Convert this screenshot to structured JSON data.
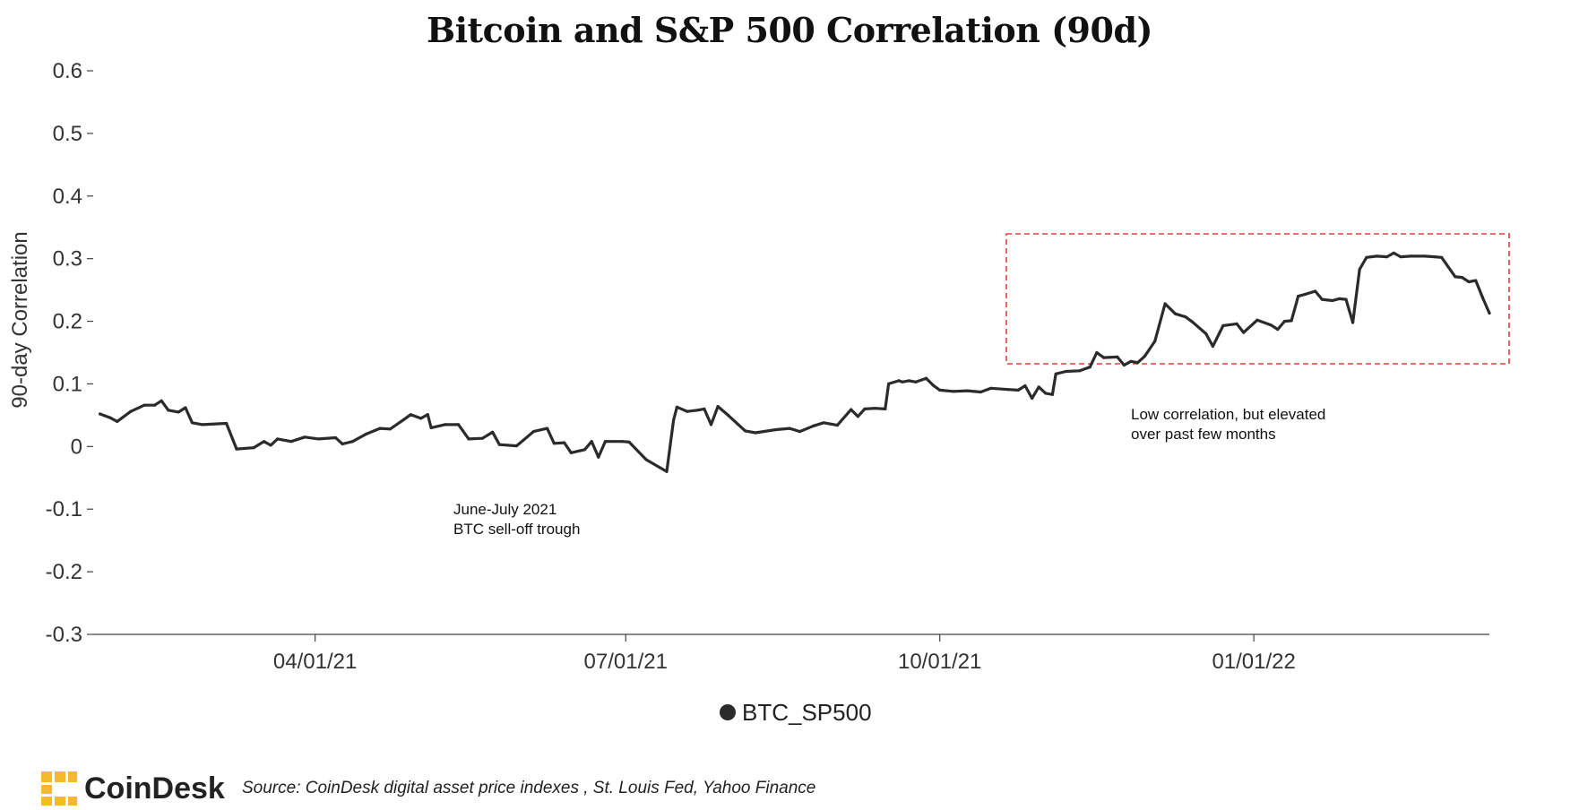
{
  "chart_data": {
    "type": "line",
    "title": "Bitcoin and S&P 500 Correlation (90d)",
    "xlabel": "",
    "ylabel": "90-day Correlation",
    "ylim": [
      -0.3,
      0.6
    ],
    "yticks": [
      -0.3,
      -0.2,
      -0.1,
      0,
      0.1,
      0.2,
      0.3,
      0.4,
      0.5,
      0.6
    ],
    "ytick_labels": [
      "-0.3",
      "-0.2",
      "-0.1",
      "0",
      "0.1",
      "0.2",
      "0.3",
      "0.4",
      "0.5",
      "0.6"
    ],
    "xlim": [
      "2021-01-26",
      "2022-03-11"
    ],
    "xticks": [
      "2021-04-01",
      "2021-07-01",
      "2021-10-01",
      "2022-01-01"
    ],
    "xtick_labels": [
      "04/01/21",
      "07/01/21",
      "10/01/21",
      "01/01/22"
    ],
    "grid": false,
    "legend_position": "bottom-center",
    "colors": {
      "line": "#2b2b2b",
      "highlight_box": "#e0403a",
      "brand_gold": "#f5b92c"
    },
    "series": [
      {
        "name": "BTC_SP500",
        "points": [
          [
            "2021-01-28",
            0.052
          ],
          [
            "2021-01-31",
            0.046
          ],
          [
            "2021-02-02",
            0.04
          ],
          [
            "2021-02-06",
            0.056
          ],
          [
            "2021-02-10",
            0.066
          ],
          [
            "2021-02-13",
            0.066
          ],
          [
            "2021-02-15",
            0.073
          ],
          [
            "2021-02-17",
            0.058
          ],
          [
            "2021-02-20",
            0.055
          ],
          [
            "2021-02-22",
            0.062
          ],
          [
            "2021-02-24",
            0.038
          ],
          [
            "2021-02-27",
            0.035
          ],
          [
            "2021-03-06",
            0.037
          ],
          [
            "2021-03-09",
            -0.004
          ],
          [
            "2021-03-14",
            -0.002
          ],
          [
            "2021-03-17",
            0.008
          ],
          [
            "2021-03-19",
            0.002
          ],
          [
            "2021-03-21",
            0.012
          ],
          [
            "2021-03-25",
            0.008
          ],
          [
            "2021-03-29",
            0.015
          ],
          [
            "2021-04-02",
            0.012
          ],
          [
            "2021-04-07",
            0.014
          ],
          [
            "2021-04-09",
            0.004
          ],
          [
            "2021-04-12",
            0.008
          ],
          [
            "2021-04-16",
            0.02
          ],
          [
            "2021-04-20",
            0.029
          ],
          [
            "2021-04-23",
            0.028
          ],
          [
            "2021-04-27",
            0.043
          ],
          [
            "2021-04-29",
            0.051
          ],
          [
            "2021-05-02",
            0.045
          ],
          [
            "2021-05-04",
            0.051
          ],
          [
            "2021-05-05",
            0.03
          ],
          [
            "2021-05-09",
            0.035
          ],
          [
            "2021-05-13",
            0.035
          ],
          [
            "2021-05-16",
            0.012
          ],
          [
            "2021-05-20",
            0.013
          ],
          [
            "2021-05-23",
            0.023
          ],
          [
            "2021-05-25",
            0.003
          ],
          [
            "2021-05-30",
            0.001
          ],
          [
            "2021-06-01",
            0.01
          ],
          [
            "2021-06-04",
            0.024
          ],
          [
            "2021-06-08",
            0.029
          ],
          [
            "2021-06-10",
            0.005
          ],
          [
            "2021-06-13",
            0.006
          ],
          [
            "2021-06-15",
            -0.01
          ],
          [
            "2021-06-19",
            -0.005
          ],
          [
            "2021-06-21",
            0.008
          ],
          [
            "2021-06-23",
            -0.017
          ],
          [
            "2021-06-25",
            0.008
          ],
          [
            "2021-06-30",
            0.008
          ],
          [
            "2021-07-02",
            0.007
          ],
          [
            "2021-07-07",
            -0.021
          ],
          [
            "2021-07-13",
            -0.04
          ],
          [
            "2021-07-15",
            0.042
          ],
          [
            "2021-07-16",
            0.063
          ],
          [
            "2021-07-19",
            0.056
          ],
          [
            "2021-07-22",
            0.058
          ],
          [
            "2021-07-24",
            0.06
          ],
          [
            "2021-07-26",
            0.035
          ],
          [
            "2021-07-28",
            0.064
          ],
          [
            "2021-07-31",
            0.05
          ],
          [
            "2021-08-05",
            0.025
          ],
          [
            "2021-08-08",
            0.022
          ],
          [
            "2021-08-14",
            0.027
          ],
          [
            "2021-08-18",
            0.029
          ],
          [
            "2021-08-21",
            0.024
          ],
          [
            "2021-08-25",
            0.033
          ],
          [
            "2021-08-28",
            0.038
          ],
          [
            "2021-08-30",
            0.036
          ],
          [
            "2021-09-01",
            0.034
          ],
          [
            "2021-09-05",
            0.059
          ],
          [
            "2021-09-07",
            0.048
          ],
          [
            "2021-09-09",
            0.06
          ],
          [
            "2021-09-12",
            0.061
          ],
          [
            "2021-09-15",
            0.06
          ],
          [
            "2021-09-16",
            0.1
          ],
          [
            "2021-09-19",
            0.105
          ],
          [
            "2021-09-20",
            0.103
          ],
          [
            "2021-09-22",
            0.105
          ],
          [
            "2021-09-24",
            0.103
          ],
          [
            "2021-09-27",
            0.109
          ],
          [
            "2021-09-29",
            0.098
          ],
          [
            "2021-10-01",
            0.09
          ],
          [
            "2021-10-05",
            0.088
          ],
          [
            "2021-10-09",
            0.089
          ],
          [
            "2021-10-13",
            0.087
          ],
          [
            "2021-10-16",
            0.093
          ],
          [
            "2021-10-21",
            0.091
          ],
          [
            "2021-10-24",
            0.09
          ],
          [
            "2021-10-26",
            0.097
          ],
          [
            "2021-10-28",
            0.077
          ],
          [
            "2021-10-30",
            0.095
          ],
          [
            "2021-11-01",
            0.085
          ],
          [
            "2021-11-03",
            0.083
          ],
          [
            "2021-11-04",
            0.116
          ],
          [
            "2021-11-07",
            0.12
          ],
          [
            "2021-11-11",
            0.121
          ],
          [
            "2021-11-14",
            0.127
          ],
          [
            "2021-11-16",
            0.15
          ],
          [
            "2021-11-18",
            0.142
          ],
          [
            "2021-11-22",
            0.143
          ],
          [
            "2021-11-24",
            0.13
          ],
          [
            "2021-11-26",
            0.136
          ],
          [
            "2021-11-28",
            0.134
          ],
          [
            "2021-11-30",
            0.144
          ],
          [
            "2021-12-03",
            0.168
          ],
          [
            "2021-12-06",
            0.228
          ],
          [
            "2021-12-09",
            0.212
          ],
          [
            "2021-12-12",
            0.207
          ],
          [
            "2021-12-14",
            0.199
          ],
          [
            "2021-12-18",
            0.18
          ],
          [
            "2021-12-20",
            0.16
          ],
          [
            "2021-12-23",
            0.193
          ],
          [
            "2021-12-27",
            0.196
          ],
          [
            "2021-12-29",
            0.182
          ],
          [
            "2022-01-02",
            0.202
          ],
          [
            "2022-01-06",
            0.194
          ],
          [
            "2022-01-08",
            0.187
          ],
          [
            "2022-01-10",
            0.2
          ],
          [
            "2022-01-12",
            0.201
          ],
          [
            "2022-01-14",
            0.24
          ],
          [
            "2022-01-16",
            0.243
          ],
          [
            "2022-01-19",
            0.248
          ],
          [
            "2022-01-21",
            0.235
          ],
          [
            "2022-01-24",
            0.233
          ],
          [
            "2022-01-26",
            0.236
          ],
          [
            "2022-01-28",
            0.235
          ],
          [
            "2022-01-30",
            0.198
          ],
          [
            "2022-02-01",
            0.283
          ],
          [
            "2022-02-03",
            0.302
          ],
          [
            "2022-02-06",
            0.304
          ],
          [
            "2022-02-09",
            0.303
          ],
          [
            "2022-02-11",
            0.309
          ],
          [
            "2022-02-13",
            0.303
          ],
          [
            "2022-02-16",
            0.304
          ],
          [
            "2022-02-20",
            0.304
          ],
          [
            "2022-02-23",
            0.303
          ],
          [
            "2022-02-25",
            0.302
          ],
          [
            "2022-03-01",
            0.271
          ],
          [
            "2022-03-03",
            0.27
          ],
          [
            "2022-03-05",
            0.263
          ],
          [
            "2022-03-07",
            0.265
          ],
          [
            "2022-03-09",
            0.238
          ],
          [
            "2022-03-11",
            0.213
          ]
        ]
      }
    ],
    "annotations": [
      {
        "lines": [
          "June-July 2021",
          "BTC sell-off trough"
        ]
      },
      {
        "lines": [
          "Low correlation, but elevated",
          "over past few months"
        ]
      }
    ]
  },
  "footer": {
    "brand": "CoinDesk",
    "source": "Source: CoinDesk digital asset price indexes , St. Louis Fed, Yahoo Finance"
  }
}
